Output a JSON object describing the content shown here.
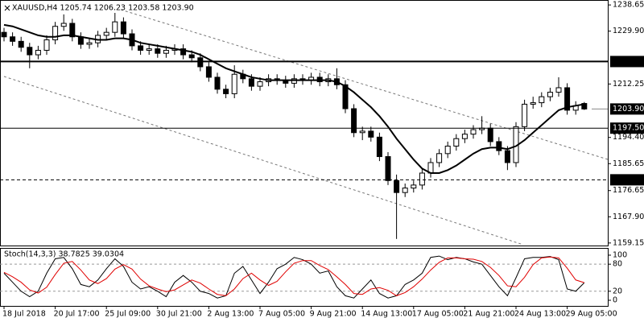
{
  "chart_data": [
    {
      "type": "candlestick",
      "title": "XAUUSD,H4 1205.74 1206.23 1203.58 1203.90",
      "categories": [
        "18 Jul 2018",
        null,
        null,
        null,
        null,
        null,
        "20 Jul 17:00",
        null,
        null,
        null,
        null,
        null,
        "25 Jul 09:00",
        null,
        null,
        null,
        null,
        null,
        "30 Jul 21:00",
        null,
        null,
        null,
        null,
        null,
        "2 Aug 13:00",
        null,
        null,
        null,
        null,
        null,
        "7 Aug 05:00",
        null,
        null,
        null,
        null,
        null,
        "9 Aug 21:00",
        null,
        null,
        null,
        null,
        null,
        "14 Aug 13:00",
        null,
        null,
        null,
        null,
        null,
        "17 Aug 05:00",
        null,
        null,
        null,
        null,
        null,
        "21 Aug 21:00",
        null,
        null,
        null,
        null,
        null,
        "24 Aug 13:00",
        null,
        null,
        null,
        null,
        null,
        "29 Aug 05:00",
        null,
        null
      ],
      "open": [
        1229.5,
        1228.0,
        1226.5,
        1224.5,
        1222.0,
        1223.5,
        1227.0,
        1231.5,
        1232.5,
        1228.0,
        1225.5,
        1226.0,
        1228.5,
        1229.5,
        1233.0,
        1229.0,
        1225.0,
        1223.5,
        1224.0,
        1222.5,
        1223.5,
        1224.0,
        1222.0,
        1221.0,
        1218.0,
        1214.5,
        1210.5,
        1209.0,
        1215.5,
        1214.0,
        1211.5,
        1213.0,
        1214.0,
        1213.5,
        1212.5,
        1214.0,
        1213.5,
        1214.5,
        1213.0,
        1214.0,
        1212.0,
        1204.0,
        1196.0,
        1196.5,
        1194.5,
        1188.0,
        1180.0,
        1176.0,
        1177.5,
        1178.5,
        1182.5,
        1186.0,
        1189.0,
        1191.5,
        1194.0,
        1195.5,
        1197.0,
        1197.5,
        1193.0,
        1190.0,
        1186.0,
        1198.0,
        1205.5,
        1206.0,
        1208.0,
        1209.5,
        1211.0,
        1203.5,
        1205.74
      ],
      "high": [
        1231,
        1229.5,
        1228,
        1226,
        1225,
        1228.5,
        1233,
        1235.5,
        1234,
        1229.5,
        1227.5,
        1230,
        1231,
        1236,
        1234.5,
        1230.5,
        1226.5,
        1225.5,
        1225.5,
        1225,
        1225.5,
        1225.5,
        1223.5,
        1222.5,
        1219.5,
        1216,
        1212,
        1218.5,
        1217,
        1215.5,
        1214.5,
        1215.5,
        1215.5,
        1215,
        1215.5,
        1215.5,
        1216,
        1216,
        1215.5,
        1217.5,
        1213.5,
        1205.5,
        1198,
        1198,
        1196,
        1189.5,
        1182,
        1179,
        1180,
        1184,
        1187.5,
        1190.5,
        1193,
        1195.5,
        1197,
        1198.5,
        1201.5,
        1199,
        1194.5,
        1191.5,
        1199.5,
        1207,
        1208,
        1209.5,
        1211,
        1214.5,
        1212.5,
        1206.5,
        1206.23
      ],
      "low": [
        1226.5,
        1225,
        1223,
        1217.5,
        1220.5,
        1222,
        1225.5,
        1230,
        1226.5,
        1224,
        1224,
        1224.5,
        1227,
        1228,
        1227.5,
        1223.5,
        1222,
        1222,
        1221,
        1221,
        1222,
        1220.5,
        1219.5,
        1216.5,
        1213,
        1209,
        1207.5,
        1207.5,
        1212.5,
        1210,
        1210,
        1211.5,
        1212,
        1211,
        1211,
        1212,
        1212,
        1211.5,
        1211.5,
        1210.5,
        1202.5,
        1194.5,
        1193.5,
        1193,
        1186.5,
        1178.5,
        1160.5,
        1174.5,
        1176,
        1177,
        1181,
        1184.5,
        1187.5,
        1190,
        1192.5,
        1194,
        1195.5,
        1191.5,
        1188.5,
        1183.5,
        1184.5,
        1196.5,
        1204,
        1204.5,
        1206.5,
        1208,
        1202,
        1202,
        1203.58
      ],
      "close": [
        1228.0,
        1226.5,
        1224.5,
        1222.0,
        1223.5,
        1227.0,
        1231.5,
        1232.5,
        1228.0,
        1225.5,
        1226.0,
        1228.5,
        1229.5,
        1233.0,
        1229.0,
        1225.0,
        1223.5,
        1224.0,
        1222.5,
        1223.5,
        1224.0,
        1222.0,
        1221.0,
        1218.0,
        1214.5,
        1210.5,
        1209.0,
        1215.5,
        1214.0,
        1211.5,
        1213.0,
        1214.0,
        1213.5,
        1212.5,
        1214.0,
        1213.5,
        1214.5,
        1213.0,
        1214.0,
        1212.0,
        1204.0,
        1196.0,
        1196.5,
        1194.5,
        1188.0,
        1180.0,
        1176.0,
        1177.5,
        1178.5,
        1182.5,
        1186.0,
        1189.0,
        1191.5,
        1194.0,
        1195.5,
        1197.0,
        1197.5,
        1193.0,
        1190.0,
        1186.0,
        1198.0,
        1205.5,
        1206.0,
        1208.0,
        1209.5,
        1211.0,
        1203.5,
        1205.0,
        1203.9
      ],
      "up_color": "#ffffff",
      "down_color": "#000000",
      "moving_average": {
        "color": "#000000",
        "values": [
          1232,
          1231.5,
          1230.5,
          1229.5,
          1228.5,
          1228,
          1228,
          1228.5,
          1228.5,
          1228,
          1227.5,
          1227,
          1227,
          1227.5,
          1227.5,
          1227,
          1226,
          1225.5,
          1225,
          1224.5,
          1224,
          1223.5,
          1223,
          1222,
          1220.5,
          1219,
          1217.5,
          1216.5,
          1215.5,
          1214.5,
          1214,
          1213.5,
          1213.5,
          1213.5,
          1213.5,
          1213.5,
          1213.5,
          1213.5,
          1213.5,
          1213,
          1211.5,
          1209.5,
          1207,
          1204.5,
          1201.5,
          1198,
          1194,
          1190.5,
          1187,
          1184,
          1182.5,
          1182.5,
          1183.5,
          1185,
          1187,
          1189,
          1190.5,
          1191,
          1191,
          1190.5,
          1191.5,
          1193.5,
          1196,
          1198.5,
          1201,
          1203.5,
          1204.5,
          1205,
          1205.5
        ]
      },
      "levels": [
        {
          "value": 1219.75,
          "style": "thick"
        },
        {
          "value": 1197.5,
          "label": "1197.50",
          "style": "solid"
        },
        {
          "value": 1180.25,
          "style": "dashed"
        }
      ],
      "last_price": {
        "value": 1203.9,
        "label": "1203.90"
      },
      "ylim": [
        1158.3,
        1240.3
      ],
      "yticks": [
        1238.65,
        {
          "value": 1229.9,
          "label": "1229.90"
        },
        1212.25,
        {
          "value": 1194.4,
          "label": "1194.40"
        },
        1185.65,
        1176.65,
        {
          "value": 1167.9,
          "label": "1167.90"
        },
        1159.15
      ]
    },
    {
      "type": "line",
      "title": "Stoch(14,3,3) 38.7825 39.0304",
      "series": [
        {
          "color": "#000000",
          "values": [
            60,
            40,
            20,
            8,
            20,
            60,
            92,
            95,
            70,
            35,
            30,
            45,
            70,
            92,
            75,
            40,
            25,
            30,
            20,
            8,
            40,
            55,
            40,
            20,
            15,
            5,
            10,
            60,
            75,
            45,
            15,
            40,
            70,
            80,
            95,
            90,
            80,
            60,
            65,
            30,
            10,
            5,
            25,
            45,
            15,
            5,
            10,
            35,
            45,
            60,
            95,
            98,
            90,
            95,
            92,
            85,
            80,
            55,
            30,
            10,
            50,
            92,
            95,
            95,
            97,
            90,
            25,
            20,
            38.8
          ]
        },
        {
          "color": "#e00000",
          "values": [
            62,
            52,
            40,
            23,
            16,
            29,
            57,
            82,
            86,
            67,
            45,
            37,
            48,
            69,
            79,
            69,
            47,
            32,
            25,
            19,
            23,
            34,
            45,
            38,
            25,
            13,
            10,
            25,
            48,
            60,
            45,
            33,
            42,
            63,
            82,
            88,
            88,
            77,
            68,
            52,
            35,
            15,
            13,
            25,
            28,
            22,
            10,
            17,
            30,
            47,
            67,
            84,
            94,
            94,
            92,
            91,
            86,
            73,
            55,
            32,
            30,
            51,
            79,
            94,
            96,
            94,
            71,
            45,
            39.0
          ]
        }
      ],
      "ylim": [
        -12.5,
        116
      ],
      "yticks": [
        0,
        20,
        80,
        100
      ]
    }
  ]
}
